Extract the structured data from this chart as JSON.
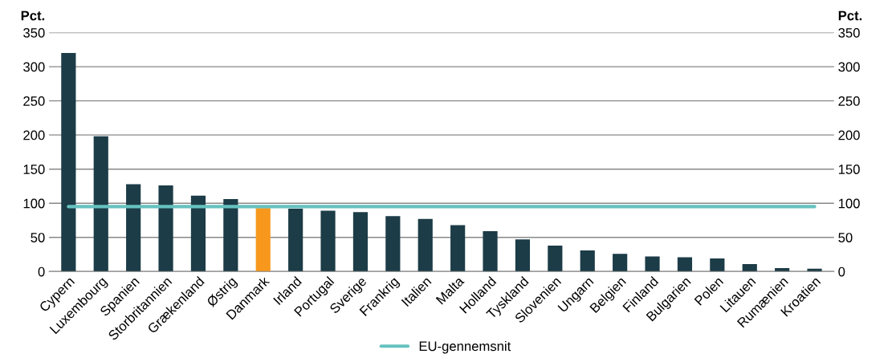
{
  "chart_data": {
    "type": "bar",
    "ylabel": "Pct.",
    "y2label": "Pct.",
    "categories": [
      "Cypern",
      "Luxembourg",
      "Spanien",
      "Storbritannien",
      "Grækenland",
      "Østrig",
      "Danmark",
      "Irland",
      "Portugal",
      "Sverige",
      "Frankrig",
      "Italien",
      "Malta",
      "Holland",
      "Tyskland",
      "Slovenien",
      "Ungarn",
      "Belgien",
      "Finland",
      "Bulgarien",
      "Polen",
      "Litauen",
      "Rumænien",
      "Kroatien"
    ],
    "series": [
      {
        "values": [
          320,
          198,
          128,
          126,
          111,
          106,
          93,
          92,
          89,
          87,
          81,
          77,
          68,
          59,
          47,
          38,
          31,
          26,
          22,
          21,
          19,
          11,
          5,
          4
        ],
        "colors": [
          "#1c3c47",
          "#1c3c47",
          "#1c3c47",
          "#1c3c47",
          "#1c3c47",
          "#1c3c47",
          "#f7981d",
          "#1c3c47",
          "#1c3c47",
          "#1c3c47",
          "#1c3c47",
          "#1c3c47",
          "#1c3c47",
          "#1c3c47",
          "#1c3c47",
          "#1c3c47",
          "#1c3c47",
          "#1c3c47",
          "#1c3c47",
          "#1c3c47",
          "#1c3c47",
          "#1c3c47",
          "#1c3c47",
          "#1c3c47"
        ]
      },
      {
        "type": "line",
        "name": "EU-gennemsnit",
        "color": "#66c2bf",
        "values": [
          95,
          95,
          95,
          95,
          95,
          95,
          95,
          95,
          95,
          95,
          95,
          95,
          95,
          95,
          95,
          95,
          95,
          95,
          95,
          95,
          95,
          95,
          95,
          95
        ]
      }
    ],
    "ylim": [
      0,
      350
    ],
    "yticks": [
      0,
      50,
      100,
      150,
      200,
      250,
      300,
      350
    ],
    "y2lim": [
      0,
      350
    ],
    "y2ticks": [
      0,
      50,
      100,
      150,
      200,
      250,
      300,
      350
    ],
    "grid": "y",
    "legend": "bottom"
  }
}
